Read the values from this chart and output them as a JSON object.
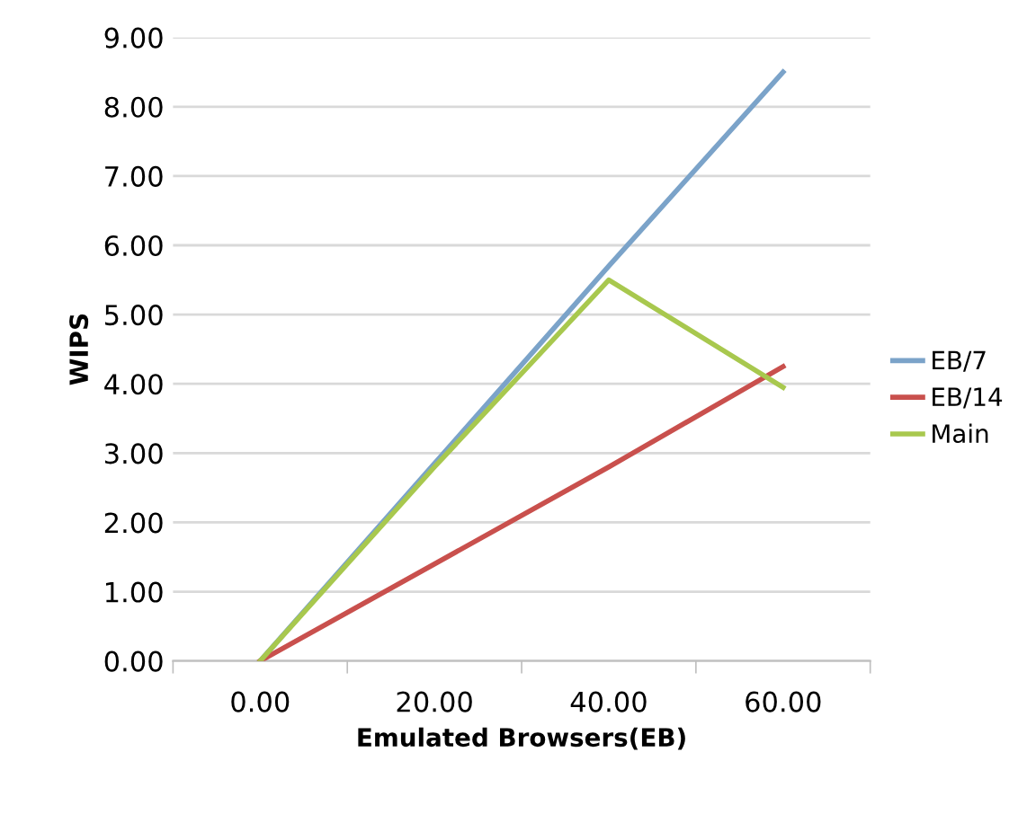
{
  "chart_data": {
    "type": "line",
    "xlabel": "Emulated Browsers(EB)",
    "ylabel": "WIPS",
    "categories": [
      "0.00",
      "20.00",
      "40.00",
      "60.00"
    ],
    "series": [
      {
        "name": "EB/7",
        "color": "#7ba3c9",
        "values": [
          0,
          2.85,
          5.7,
          8.5
        ]
      },
      {
        "name": "EB/14",
        "color": "#c9504d",
        "values": [
          0,
          1.4,
          2.8,
          4.25
        ]
      },
      {
        "name": "Main",
        "color": "#a8c84e",
        "values": [
          0,
          2.8,
          5.5,
          3.95
        ]
      }
    ],
    "ylim": [
      0,
      9
    ],
    "yticks": [
      {
        "value": 0,
        "label": "0.00"
      },
      {
        "value": 1,
        "label": "1.00"
      },
      {
        "value": 2,
        "label": "2.00"
      },
      {
        "value": 3,
        "label": "3.00"
      },
      {
        "value": 4,
        "label": "4.00"
      },
      {
        "value": 5,
        "label": "5.00"
      },
      {
        "value": 6,
        "label": "6.00"
      },
      {
        "value": 7,
        "label": "7.00"
      },
      {
        "value": 8,
        "label": "8.00"
      },
      {
        "value": 9,
        "label": "9.00"
      }
    ],
    "grid": "y",
    "legend": "right",
    "marker": "none",
    "line_style": "solid"
  }
}
